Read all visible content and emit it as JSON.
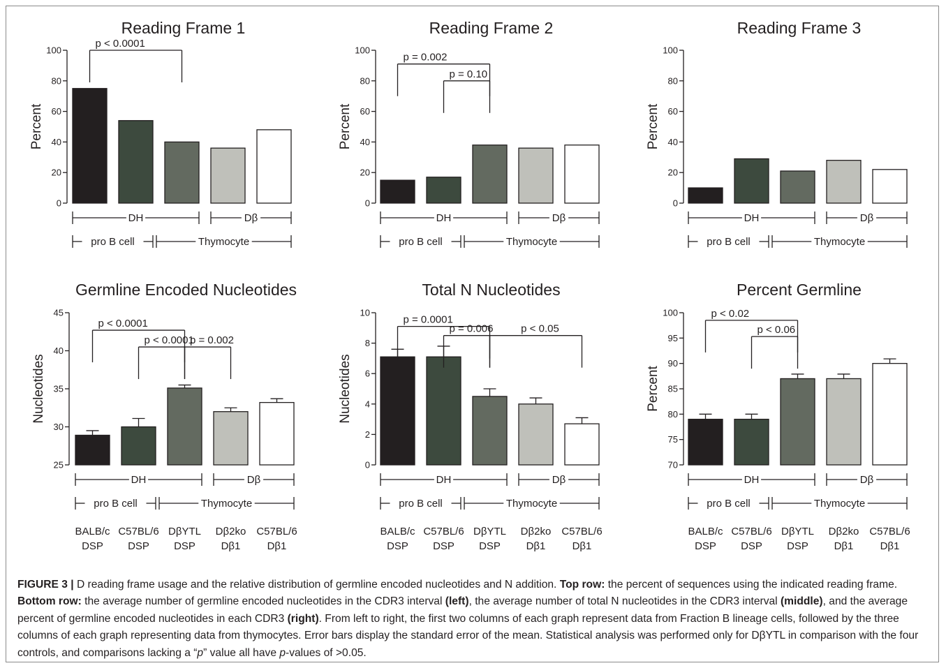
{
  "colors": {
    "BALB/c DSP": "#231f20",
    "C57BL/6 DSP": "#3d4a3e",
    "DβYTL DSP": "#636a60",
    "Dβ2ko Dβ1": "#bfc0ba",
    "C57BL/6 Dβ1": "#ffffff",
    "axis": "#231f20"
  },
  "category_lines": [
    [
      "BALB/c",
      "DSP"
    ],
    [
      "C57BL/6",
      "DSP"
    ],
    [
      "DβYTL",
      "DSP"
    ],
    [
      "Dβ2ko",
      "Dβ1"
    ],
    [
      "C57BL/6",
      "Dβ1"
    ]
  ],
  "group_labels": {
    "row1": {
      "dh": "DH",
      "db": "Dβ"
    },
    "row2": {
      "pro_b": "pro B cell",
      "thymocyte": "Thymocyte"
    }
  },
  "chart_data": [
    {
      "type": "bar",
      "title": "Reading Frame 1",
      "ylabel": "Percent",
      "ylim": [
        0,
        100
      ],
      "yticks": [
        0,
        20,
        40,
        60,
        80,
        100
      ],
      "categories": [
        "BALB/c DSP",
        "C57BL/6 DSP",
        "DβYTL DSP",
        "Dβ2ko Dβ1",
        "C57BL/6 Dβ1"
      ],
      "values": [
        75,
        54,
        40,
        36,
        48
      ],
      "errors": null,
      "annotations": [
        {
          "text": "p < 0.0001",
          "from": 0,
          "to": 2,
          "level": 100
        }
      ]
    },
    {
      "type": "bar",
      "title": "Reading Frame 2",
      "ylabel": "Percent",
      "ylim": [
        0,
        100
      ],
      "yticks": [
        0,
        20,
        40,
        60,
        80,
        100
      ],
      "categories": [
        "BALB/c DSP",
        "C57BL/6 DSP",
        "DβYTL DSP",
        "Dβ2ko Dβ1",
        "C57BL/6 Dβ1"
      ],
      "values": [
        15,
        17,
        38,
        36,
        38
      ],
      "errors": null,
      "annotations": [
        {
          "text": "p = 0.002",
          "from": 0,
          "to": 2,
          "level": 91
        },
        {
          "text": "p = 0.10",
          "from": 1,
          "to": 2,
          "level": 80
        }
      ]
    },
    {
      "type": "bar",
      "title": "Reading Frame 3",
      "ylabel": "Percent",
      "ylim": [
        0,
        100
      ],
      "yticks": [
        0,
        20,
        40,
        60,
        80,
        100
      ],
      "categories": [
        "BALB/c DSP",
        "C57BL/6 DSP",
        "DβYTL DSP",
        "Dβ2ko Dβ1",
        "C57BL/6 Dβ1"
      ],
      "values": [
        10,
        29,
        21,
        28,
        22
      ],
      "errors": null,
      "annotations": []
    },
    {
      "type": "bar",
      "title": "Germline Encoded Nucleotides",
      "ylabel": "Nucleotides",
      "ylim": [
        25,
        45
      ],
      "yticks": [
        25,
        30,
        35,
        40,
        45
      ],
      "categories": [
        "BALB/c DSP",
        "C57BL/6 DSP",
        "DβYTL DSP",
        "Dβ2ko Dβ1",
        "C57BL/6 Dβ1"
      ],
      "values": [
        28.9,
        30.0,
        35.1,
        32.0,
        33.2
      ],
      "errors": [
        0.6,
        1.1,
        0.4,
        0.5,
        0.5
      ],
      "annotations": [
        {
          "text": "p < 0.0001",
          "from": 0,
          "to": 2,
          "level": 42.7
        },
        {
          "text": "p < 0.0001",
          "from": 1,
          "to": 2,
          "level": 40.5
        },
        {
          "text": "p = 0.002",
          "from": 2,
          "to": 3,
          "level": 40.5,
          "label_side": "right"
        }
      ]
    },
    {
      "type": "bar",
      "title": "Total N Nucleotides",
      "ylabel": "Nucleotides",
      "ylim": [
        0,
        10
      ],
      "yticks": [
        0,
        2,
        4,
        6,
        8,
        10
      ],
      "categories": [
        "BALB/c DSP",
        "C57BL/6 DSP",
        "DβYTL DSP",
        "Dβ2ko Dβ1",
        "C57BL/6 Dβ1"
      ],
      "values": [
        7.1,
        7.1,
        4.5,
        4.0,
        2.7
      ],
      "errors": [
        0.5,
        0.7,
        0.5,
        0.4,
        0.4
      ],
      "annotations": [
        {
          "text": "p = 0.0001",
          "from": 0,
          "to": 2,
          "level": 9.1
        },
        {
          "text": "p = 0.006",
          "from": 1,
          "to": 2,
          "level": 8.5
        },
        {
          "text": "p < 0.05",
          "from": 2,
          "to": 4,
          "level": 8.5,
          "label_side": "right"
        }
      ]
    },
    {
      "type": "bar",
      "title": "Percent Germline",
      "ylabel": "Percent",
      "ylim": [
        70,
        100
      ],
      "yticks": [
        70,
        75,
        80,
        85,
        90,
        95,
        100
      ],
      "categories": [
        "BALB/c DSP",
        "C57BL/6 DSP",
        "DβYTL DSP",
        "Dβ2ko Dβ1",
        "C57BL/6 Dβ1"
      ],
      "values": [
        79,
        79,
        87,
        87,
        90
      ],
      "errors": [
        1.0,
        1.0,
        0.9,
        0.9,
        0.9
      ],
      "annotations": [
        {
          "text": "p < 0.02",
          "from": 0,
          "to": 2,
          "level": 98.5
        },
        {
          "text": "p < 0.06",
          "from": 1,
          "to": 2,
          "level": 95.3
        }
      ]
    }
  ],
  "caption": {
    "figure_label": "FIGURE 3 |",
    "intro": " D reading frame usage and the relative distribution of germline encoded nucleotides and N addition. ",
    "top_row_label": "Top row:",
    "top_row_text": " the percent of sequences using the indicated reading frame. ",
    "bottom_row_label": "Bottom row:",
    "bottom_row_text_1": " the average number of germline encoded nucleotides in the CDR3 interval ",
    "left_label": "(left)",
    "bottom_row_text_2": ", the average number of total N nucleotides in the CDR3 interval ",
    "middle_label": "(middle)",
    "bottom_row_text_3": ", and the average percent of germline encoded nucleotides in each CDR3 ",
    "right_label": "(right)",
    "rest_1": ". From left to right, the first two columns of each graph represent data from Fraction B lineage cells, followed by the three columns of each graph representing data from thymocytes. Error bars display the standard error of the mean. Statistical analysis was performed only for DβYTL in comparison with the four controls, and comparisons lacking a “",
    "p_italic": "p",
    "rest_2": "” value all have ",
    "p_italic_2": "p",
    "rest_3": "-values of >0.05."
  }
}
